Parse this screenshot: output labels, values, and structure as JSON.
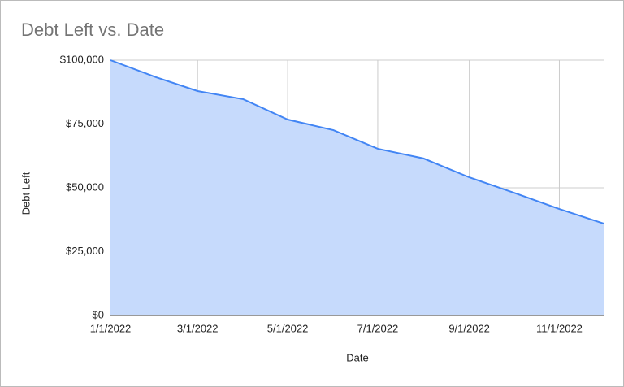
{
  "chart_data": {
    "type": "area",
    "title": "Debt Left vs. Date",
    "x_label": "Date",
    "y_label": "Debt Left",
    "x": [
      "1/1/2022",
      "2/1/2022",
      "3/1/2022",
      "4/1/2022",
      "5/1/2022",
      "6/1/2022",
      "7/1/2022",
      "8/1/2022",
      "9/1/2022",
      "10/1/2022",
      "11/1/2022",
      "12/1/2022"
    ],
    "series": [
      {
        "name": "Debt Left",
        "color": "#4285f4",
        "fill": "#c6dafc",
        "values": [
          100000,
          93300,
          87900,
          84700,
          76750,
          72600,
          65300,
          61500,
          54100,
          48100,
          41700,
          36000
        ]
      }
    ],
    "xlim": [
      "1/1/2022",
      "12/1/2022"
    ],
    "xticks": [
      "1/1/2022",
      "3/1/2022",
      "5/1/2022",
      "7/1/2022",
      "9/1/2022",
      "11/1/2022"
    ],
    "ylim": [
      0,
      100000
    ],
    "yticks": [
      {
        "value": 0,
        "label": "$0"
      },
      {
        "value": 25000,
        "label": "$25,000"
      },
      {
        "value": 50000,
        "label": "$50,000"
      },
      {
        "value": 75000,
        "label": "$75,000"
      },
      {
        "value": 100000,
        "label": "$100,000"
      }
    ],
    "grid": true
  }
}
